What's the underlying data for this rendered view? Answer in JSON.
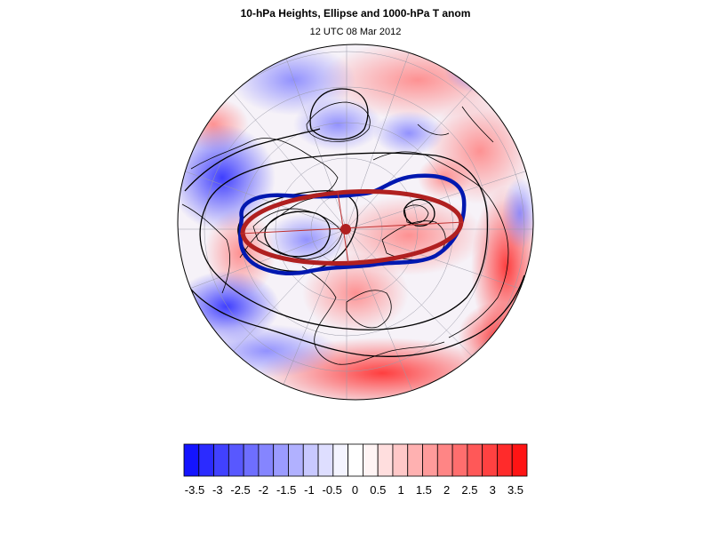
{
  "title": "10-hPa Heights, Ellipse and 1000-hPa T anom",
  "subtitle": "12 UTC 08 Mar 2012",
  "colors": {
    "cold_max": "#1010ff",
    "warm_max": "#ff1010",
    "ellipse": "#b02020",
    "vortex_edge": "#0018b0",
    "contour": "#000000",
    "coast": "#000000"
  },
  "colorbar": {
    "labels": [
      "-3.5",
      "-3",
      "-2.5",
      "-2",
      "-1.5",
      "-1",
      "-0.5",
      "0",
      "0.5",
      "1",
      "1.5",
      "2",
      "2.5",
      "3",
      "3.5"
    ],
    "colors": [
      "#1414ff",
      "#2b2bff",
      "#4141ff",
      "#5858ff",
      "#6e6eff",
      "#8585ff",
      "#9b9bff",
      "#b1b1ff",
      "#c8c8ff",
      "#dedeff",
      "#f4f4ff",
      "#ffffff",
      "#fff4f4",
      "#ffdede",
      "#ffc8c8",
      "#ffb1b1",
      "#ff9b9b",
      "#ff8585",
      "#ff6e6e",
      "#ff5858",
      "#ff4141",
      "#ff2b2b",
      "#ff1414"
    ]
  }
}
